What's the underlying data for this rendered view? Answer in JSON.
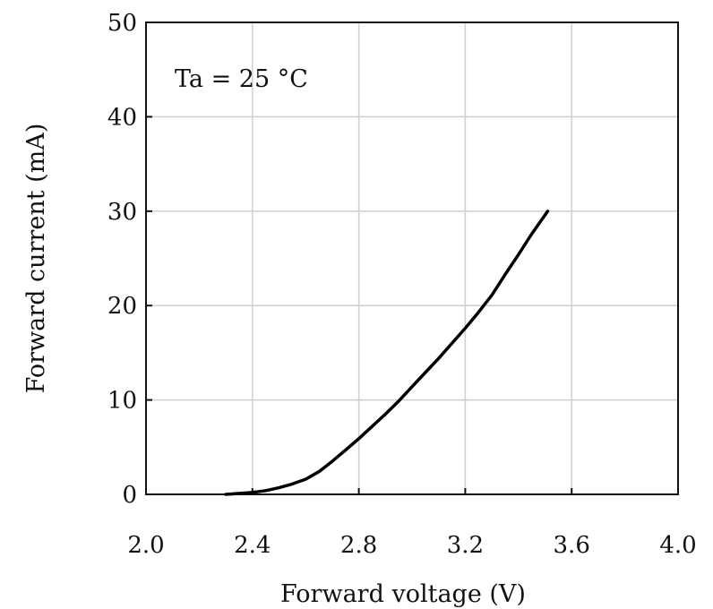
{
  "chart_data": {
    "type": "line",
    "xlabel": "Forward voltage (V)",
    "ylabel": "Forward current (mA)",
    "xlim": [
      2.0,
      4.0
    ],
    "ylim": [
      0,
      50
    ],
    "xticks": [
      "2.0",
      "2.4",
      "2.8",
      "3.2",
      "3.6",
      "4.0"
    ],
    "yticks": [
      "0",
      "10",
      "20",
      "30",
      "40",
      "50"
    ],
    "grid": true,
    "annotation": "Ta = 25 °C",
    "series": [
      {
        "x": [
          2.3,
          2.4,
          2.45,
          2.5,
          2.55,
          2.6,
          2.65,
          2.7,
          2.75,
          2.8,
          2.85,
          2.9,
          2.95,
          3.0,
          3.05,
          3.1,
          3.15,
          3.2,
          3.25,
          3.3,
          3.35,
          3.4,
          3.45,
          3.51
        ],
        "y": [
          0.0,
          0.2,
          0.4,
          0.7,
          1.1,
          1.6,
          2.4,
          3.5,
          4.7,
          5.9,
          7.2,
          8.5,
          9.9,
          11.4,
          12.9,
          14.4,
          16.0,
          17.6,
          19.3,
          21.1,
          23.3,
          25.4,
          27.6,
          30.0
        ],
        "color": "#000000"
      }
    ]
  }
}
